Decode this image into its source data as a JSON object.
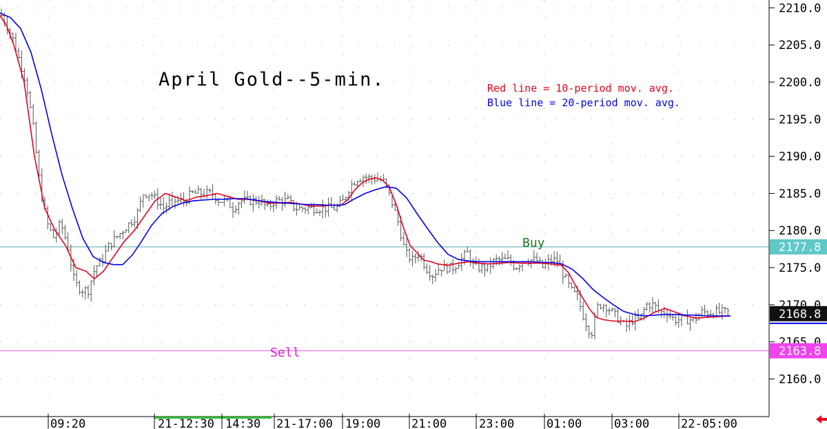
{
  "chart_data": {
    "type": "line",
    "title": "April Gold--5-min.",
    "ylim": [
      2158.0,
      2210.5
    ],
    "y_ticks": [
      "2210.0",
      "2205.0",
      "2200.0",
      "2195.0",
      "2190.0",
      "2185.0",
      "2180.0",
      "2175.0",
      "2170.0",
      "2165.0",
      "2160.0"
    ],
    "x_tick_labels": [
      "09:20",
      "21-12:30",
      "14:30",
      "21-17:00",
      "19:00",
      "21:00",
      "23:00",
      "01:00",
      "03:00",
      "22-05:00"
    ],
    "legend": [
      {
        "text": "Red line = 10-period mov. avg.",
        "color": "#e8001c"
      },
      {
        "text": "Blue line = 20-period mov. avg.",
        "color": "#0000ee"
      }
    ],
    "levels": [
      {
        "label": "Buy",
        "value": 2177.8,
        "tag": "2177.8",
        "color": "#5fb3b3",
        "label_color": "#1e7a1e",
        "tag_bg": "#5fc8c8",
        "tag_fg": "#ffffff"
      },
      {
        "label": "Sell",
        "value": 2163.8,
        "tag": "2163.8",
        "color": "#e36be3",
        "label_color": "#d81cd8",
        "tag_bg": "#ee44ee",
        "tag_fg": "#ffffff"
      }
    ],
    "last_price": {
      "tag": "2168.8",
      "value": 2168.8,
      "tag_bg": "#111111",
      "tag_fg": "#ffffff"
    },
    "series": [
      {
        "name": "Red line = 10-period mov. avg.",
        "color": "#e8001c",
        "points": [
          [
            0,
            2209
          ],
          [
            10,
            2207.5
          ],
          [
            20,
            2205
          ],
          [
            35,
            2200
          ],
          [
            50,
            2190
          ],
          [
            65,
            2183
          ],
          [
            80,
            2180
          ],
          [
            95,
            2178
          ],
          [
            110,
            2175
          ],
          [
            125,
            2174.5
          ],
          [
            137,
            2173.5
          ],
          [
            150,
            2174.5
          ],
          [
            165,
            2176.5
          ],
          [
            180,
            2178.5
          ],
          [
            195,
            2180
          ],
          [
            210,
            2182
          ],
          [
            225,
            2184
          ],
          [
            240,
            2185
          ],
          [
            255,
            2184.5
          ],
          [
            270,
            2184
          ],
          [
            285,
            2184.5
          ],
          [
            300,
            2184.7
          ],
          [
            315,
            2185
          ],
          [
            330,
            2184.6
          ],
          [
            345,
            2184.2
          ],
          [
            360,
            2184.2
          ],
          [
            375,
            2184
          ],
          [
            390,
            2183.7
          ],
          [
            405,
            2183.7
          ],
          [
            420,
            2183.8
          ],
          [
            435,
            2183.6
          ],
          [
            450,
            2183.3
          ],
          [
            465,
            2183.3
          ],
          [
            480,
            2183.4
          ],
          [
            495,
            2183.4
          ],
          [
            505,
            2184.2
          ],
          [
            515,
            2185.5
          ],
          [
            525,
            2186.4
          ],
          [
            535,
            2186.9
          ],
          [
            545,
            2187.1
          ],
          [
            555,
            2186.8
          ],
          [
            565,
            2185.8
          ],
          [
            575,
            2183.5
          ],
          [
            585,
            2180.5
          ],
          [
            595,
            2178
          ],
          [
            605,
            2177
          ],
          [
            615,
            2176
          ],
          [
            625,
            2175.8
          ],
          [
            635,
            2175.5
          ],
          [
            650,
            2175.3
          ],
          [
            665,
            2175.6
          ],
          [
            680,
            2175.8
          ],
          [
            695,
            2175.6
          ],
          [
            710,
            2175.5
          ],
          [
            725,
            2175.6
          ],
          [
            740,
            2175.7
          ],
          [
            755,
            2175.6
          ],
          [
            770,
            2175.6
          ],
          [
            785,
            2175.6
          ],
          [
            800,
            2175.5
          ],
          [
            815,
            2175.3
          ],
          [
            825,
            2174.3
          ],
          [
            835,
            2172.6
          ],
          [
            845,
            2171
          ],
          [
            855,
            2169.5
          ],
          [
            865,
            2168.3
          ],
          [
            875,
            2168
          ],
          [
            890,
            2167.8
          ],
          [
            905,
            2167.8
          ],
          [
            920,
            2167.7
          ],
          [
            935,
            2168.2
          ],
          [
            950,
            2169
          ],
          [
            965,
            2169.5
          ],
          [
            980,
            2169
          ],
          [
            995,
            2168.5
          ],
          [
            1010,
            2168.2
          ],
          [
            1025,
            2168.3
          ],
          [
            1040,
            2168.4
          ],
          [
            1060,
            2168.5
          ]
        ]
      },
      {
        "name": "Blue line = 20-period mov. avg.",
        "color": "#0000ee",
        "points": [
          [
            0,
            2209.3
          ],
          [
            15,
            2208.7
          ],
          [
            30,
            2207.2
          ],
          [
            45,
            2204
          ],
          [
            60,
            2199
          ],
          [
            75,
            2193
          ],
          [
            90,
            2187.5
          ],
          [
            105,
            2183
          ],
          [
            120,
            2179
          ],
          [
            135,
            2176.5
          ],
          [
            150,
            2175.7
          ],
          [
            165,
            2175.4
          ],
          [
            178,
            2175.4
          ],
          [
            192,
            2176.7
          ],
          [
            205,
            2178.5
          ],
          [
            220,
            2180.7
          ],
          [
            235,
            2182.3
          ],
          [
            250,
            2183.2
          ],
          [
            265,
            2183.7
          ],
          [
            280,
            2184
          ],
          [
            295,
            2184.1
          ],
          [
            310,
            2184.2
          ],
          [
            325,
            2184.2
          ],
          [
            340,
            2184.3
          ],
          [
            355,
            2184.3
          ],
          [
            370,
            2184.1
          ],
          [
            385,
            2183.9
          ],
          [
            400,
            2183.8
          ],
          [
            415,
            2183.7
          ],
          [
            430,
            2183.6
          ],
          [
            445,
            2183.5
          ],
          [
            460,
            2183.5
          ],
          [
            475,
            2183.4
          ],
          [
            490,
            2183.4
          ],
          [
            500,
            2183.5
          ],
          [
            515,
            2184.3
          ],
          [
            530,
            2185
          ],
          [
            545,
            2185.5
          ],
          [
            560,
            2185.9
          ],
          [
            575,
            2185.7
          ],
          [
            590,
            2184.4
          ],
          [
            605,
            2182.3
          ],
          [
            620,
            2180.3
          ],
          [
            635,
            2178.4
          ],
          [
            650,
            2176.8
          ],
          [
            665,
            2176.1
          ],
          [
            680,
            2175.9
          ],
          [
            695,
            2175.8
          ],
          [
            710,
            2175.8
          ],
          [
            725,
            2175.8
          ],
          [
            740,
            2175.8
          ],
          [
            755,
            2175.8
          ],
          [
            770,
            2175.8
          ],
          [
            785,
            2175.7
          ],
          [
            800,
            2175.7
          ],
          [
            815,
            2175.5
          ],
          [
            830,
            2174.8
          ],
          [
            845,
            2173.6
          ],
          [
            860,
            2172.1
          ],
          [
            875,
            2171
          ],
          [
            890,
            2170
          ],
          [
            905,
            2169.1
          ],
          [
            920,
            2168.7
          ],
          [
            935,
            2168.5
          ],
          [
            950,
            2168.6
          ],
          [
            965,
            2168.7
          ],
          [
            980,
            2168.7
          ],
          [
            995,
            2168.6
          ],
          [
            1010,
            2168.6
          ],
          [
            1025,
            2168.5
          ],
          [
            1040,
            2168.5
          ],
          [
            1060,
            2168.5
          ]
        ]
      }
    ],
    "price_bars_shape": [
      [
        0,
        2209.3
      ],
      [
        8,
        2208
      ],
      [
        18,
        2206
      ],
      [
        28,
        2203
      ],
      [
        38,
        2200
      ],
      [
        48,
        2194
      ],
      [
        58,
        2186
      ],
      [
        68,
        2181
      ],
      [
        78,
        2179
      ],
      [
        88,
        2181
      ],
      [
        98,
        2178
      ],
      [
        108,
        2173
      ],
      [
        118,
        2172
      ],
      [
        128,
        2172
      ],
      [
        138,
        2175
      ],
      [
        148,
        2176
      ],
      [
        158,
        2178
      ],
      [
        168,
        2179
      ],
      [
        178,
        2180
      ],
      [
        188,
        2181
      ],
      [
        198,
        2182
      ],
      [
        208,
        2185
      ],
      [
        218,
        2185
      ],
      [
        228,
        2184
      ],
      [
        238,
        2183
      ],
      [
        248,
        2184
      ],
      [
        258,
        2184
      ],
      [
        268,
        2184
      ],
      [
        278,
        2185
      ],
      [
        288,
        2185
      ],
      [
        298,
        2185
      ],
      [
        308,
        2185
      ],
      [
        318,
        2184
      ],
      [
        328,
        2184
      ],
      [
        338,
        2183
      ],
      [
        348,
        2184
      ],
      [
        358,
        2184
      ],
      [
        368,
        2184
      ],
      [
        378,
        2184
      ],
      [
        388,
        2183
      ],
      [
        398,
        2184
      ],
      [
        408,
        2184
      ],
      [
        418,
        2184
      ],
      [
        428,
        2183
      ],
      [
        438,
        2183
      ],
      [
        448,
        2183
      ],
      [
        458,
        2183
      ],
      [
        468,
        2183
      ],
      [
        478,
        2183
      ],
      [
        488,
        2183
      ],
      [
        498,
        2184
      ],
      [
        508,
        2186
      ],
      [
        518,
        2187
      ],
      [
        528,
        2187.3
      ],
      [
        538,
        2187
      ],
      [
        548,
        2187
      ],
      [
        558,
        2186.5
      ],
      [
        568,
        2184
      ],
      [
        578,
        2181
      ],
      [
        588,
        2177
      ],
      [
        598,
        2176
      ],
      [
        608,
        2177
      ],
      [
        618,
        2175
      ],
      [
        628,
        2174
      ],
      [
        638,
        2175
      ],
      [
        648,
        2175
      ],
      [
        658,
        2175
      ],
      [
        668,
        2176
      ],
      [
        678,
        2177
      ],
      [
        688,
        2175
      ],
      [
        698,
        2175
      ],
      [
        708,
        2175
      ],
      [
        718,
        2176
      ],
      [
        728,
        2176
      ],
      [
        738,
        2176
      ],
      [
        748,
        2175
      ],
      [
        758,
        2176
      ],
      [
        768,
        2176
      ],
      [
        778,
        2176
      ],
      [
        788,
        2175
      ],
      [
        798,
        2176
      ],
      [
        808,
        2176
      ],
      [
        818,
        2174
      ],
      [
        828,
        2172
      ],
      [
        838,
        2171
      ],
      [
        848,
        2168
      ],
      [
        858,
        2166
      ],
      [
        868,
        2170
      ],
      [
        878,
        2170
      ],
      [
        888,
        2169
      ],
      [
        898,
        2168
      ],
      [
        908,
        2167
      ],
      [
        918,
        2168
      ],
      [
        928,
        2168
      ],
      [
        938,
        2170
      ],
      [
        948,
        2170
      ],
      [
        958,
        2169
      ],
      [
        968,
        2169
      ],
      [
        978,
        2168
      ],
      [
        988,
        2168
      ],
      [
        998,
        2168
      ],
      [
        1008,
        2168
      ],
      [
        1018,
        2169
      ],
      [
        1028,
        2169
      ],
      [
        1038,
        2169
      ],
      [
        1048,
        2169
      ],
      [
        1058,
        2169
      ]
    ]
  }
}
